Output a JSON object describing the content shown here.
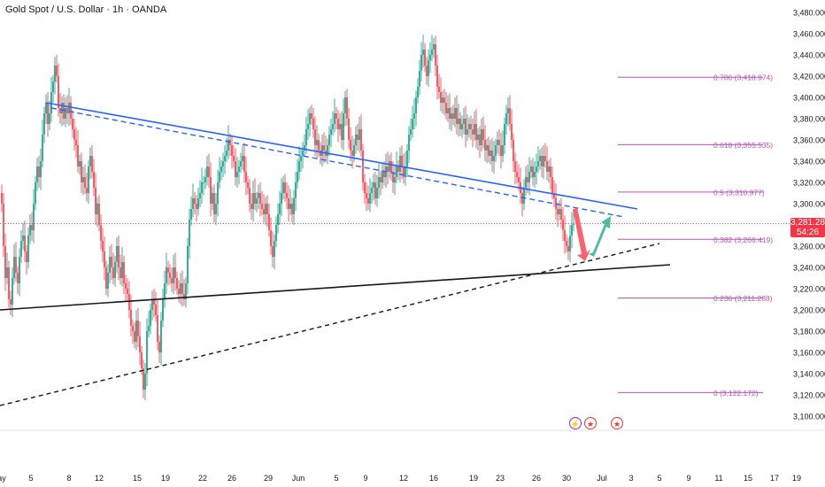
{
  "header": {
    "symbol_title": "Gold Spot / U.S. Dollar · 1h · OANDA"
  },
  "price_tag": {
    "price": "3,281.285",
    "countdown": "54:26",
    "color": "#f23645"
  },
  "events": [
    {
      "icon": "lightning-icon",
      "color": "#9c27b0"
    },
    {
      "icon": "us-flag-icon",
      "color": "#e53935"
    },
    {
      "icon": "us-flag-icon",
      "color": "#e53935"
    }
  ],
  "chart_data": {
    "type": "candlestick",
    "y_range": [
      3090,
      3490
    ],
    "y_ticks": [
      "3,100.000",
      "3,120.000",
      "3,140.000",
      "3,160.000",
      "3,180.000",
      "3,200.000",
      "3,220.000",
      "3,240.000",
      "3,260.000",
      "3,280.000",
      "3,300.000",
      "3,320.000",
      "3,340.000",
      "3,360.000",
      "3,380.000",
      "3,400.000",
      "3,420.000",
      "3,440.000",
      "3,460.000",
      "3,480.000"
    ],
    "x_ticks": [
      "ay",
      "5",
      "8",
      "12",
      "15",
      "19",
      "22",
      "26",
      "29",
      "Jun",
      "5",
      "9",
      "12",
      "16",
      "19",
      "23",
      "26",
      "30",
      "Jul",
      "3",
      "5",
      "9",
      "11",
      "15",
      "17",
      "19"
    ],
    "current_price": 3281.285,
    "fibonacci": [
      {
        "label": "0.786 (3,418.974)",
        "value": 3418.974
      },
      {
        "label": "0.618 (3,355.535)",
        "value": 3355.535
      },
      {
        "label": "0.5 (3,310.977)",
        "value": 3310.977
      },
      {
        "label": "0.382 (3,266.419)",
        "value": 3266.419
      },
      {
        "label": "0.236 (3,211.288)",
        "value": 3211.288
      },
      {
        "label": "0 (3,122.172)",
        "value": 3122.172
      }
    ],
    "price_path": [
      [
        0,
        3310
      ],
      [
        2,
        3300
      ],
      [
        4,
        3260
      ],
      [
        6,
        3230
      ],
      [
        8,
        3240
      ],
      [
        10,
        3210
      ],
      [
        12,
        3205
      ],
      [
        14,
        3230
      ],
      [
        16,
        3250
      ],
      [
        18,
        3235
      ],
      [
        20,
        3225
      ],
      [
        22,
        3250
      ],
      [
        24,
        3265
      ],
      [
        26,
        3270
      ],
      [
        28,
        3255
      ],
      [
        30,
        3245
      ],
      [
        32,
        3270
      ],
      [
        34,
        3280
      ],
      [
        36,
        3275
      ],
      [
        38,
        3300
      ],
      [
        40,
        3320
      ],
      [
        42,
        3335
      ],
      [
        44,
        3325
      ],
      [
        46,
        3340
      ],
      [
        48,
        3365
      ],
      [
        50,
        3385
      ],
      [
        52,
        3395
      ],
      [
        54,
        3375
      ],
      [
        56,
        3385
      ],
      [
        58,
        3405
      ],
      [
        60,
        3415
      ],
      [
        62,
        3430
      ],
      [
        64,
        3420
      ],
      [
        66,
        3390
      ],
      [
        68,
        3385
      ],
      [
        70,
        3395
      ],
      [
        72,
        3380
      ],
      [
        74,
        3390
      ],
      [
        76,
        3385
      ],
      [
        78,
        3395
      ],
      [
        80,
        3380
      ],
      [
        82,
        3370
      ],
      [
        84,
        3360
      ],
      [
        86,
        3355
      ],
      [
        88,
        3335
      ],
      [
        90,
        3340
      ],
      [
        92,
        3320
      ],
      [
        94,
        3325
      ],
      [
        96,
        3315
      ],
      [
        98,
        3310
      ],
      [
        100,
        3335
      ],
      [
        102,
        3345
      ],
      [
        104,
        3330
      ],
      [
        106,
        3315
      ],
      [
        108,
        3290
      ],
      [
        110,
        3300
      ],
      [
        112,
        3280
      ],
      [
        114,
        3265
      ],
      [
        116,
        3255
      ],
      [
        118,
        3240
      ],
      [
        120,
        3220
      ],
      [
        122,
        3235
      ],
      [
        124,
        3250
      ],
      [
        126,
        3240
      ],
      [
        128,
        3230
      ],
      [
        130,
        3245
      ],
      [
        132,
        3260
      ],
      [
        134,
        3240
      ],
      [
        136,
        3230
      ],
      [
        138,
        3245
      ],
      [
        140,
        3225
      ],
      [
        142,
        3220
      ],
      [
        144,
        3215
      ],
      [
        146,
        3200
      ],
      [
        148,
        3185
      ],
      [
        150,
        3180
      ],
      [
        152,
        3170
      ],
      [
        154,
        3190
      ],
      [
        156,
        3175
      ],
      [
        158,
        3160
      ],
      [
        160,
        3145
      ],
      [
        162,
        3125
      ],
      [
        164,
        3140
      ],
      [
        166,
        3180
      ],
      [
        168,
        3185
      ],
      [
        170,
        3200
      ],
      [
        172,
        3210
      ],
      [
        174,
        3205
      ],
      [
        176,
        3195
      ],
      [
        178,
        3170
      ],
      [
        180,
        3160
      ],
      [
        182,
        3190
      ],
      [
        184,
        3210
      ],
      [
        186,
        3225
      ],
      [
        188,
        3240
      ],
      [
        190,
        3235
      ],
      [
        192,
        3230
      ],
      [
        194,
        3225
      ],
      [
        196,
        3240
      ],
      [
        198,
        3230
      ],
      [
        200,
        3220
      ],
      [
        202,
        3215
      ],
      [
        204,
        3225
      ],
      [
        206,
        3215
      ],
      [
        208,
        3210
      ],
      [
        210,
        3225
      ],
      [
        212,
        3260
      ],
      [
        214,
        3285
      ],
      [
        216,
        3295
      ],
      [
        218,
        3305
      ],
      [
        220,
        3300
      ],
      [
        222,
        3295
      ],
      [
        224,
        3305
      ],
      [
        226,
        3310
      ],
      [
        228,
        3320
      ],
      [
        230,
        3320
      ],
      [
        232,
        3325
      ],
      [
        234,
        3335
      ],
      [
        236,
        3325
      ],
      [
        238,
        3300
      ],
      [
        240,
        3310
      ],
      [
        242,
        3290
      ],
      [
        244,
        3300
      ],
      [
        246,
        3320
      ],
      [
        248,
        3330
      ],
      [
        250,
        3335
      ],
      [
        252,
        3340
      ],
      [
        254,
        3345
      ],
      [
        256,
        3350
      ],
      [
        258,
        3360
      ],
      [
        260,
        3355
      ],
      [
        262,
        3345
      ],
      [
        264,
        3340
      ],
      [
        266,
        3325
      ],
      [
        268,
        3330
      ],
      [
        270,
        3335
      ],
      [
        272,
        3340
      ],
      [
        274,
        3345
      ],
      [
        276,
        3330
      ],
      [
        278,
        3320
      ],
      [
        280,
        3315
      ],
      [
        282,
        3300
      ],
      [
        284,
        3295
      ],
      [
        286,
        3310
      ],
      [
        288,
        3300
      ],
      [
        290,
        3305
      ],
      [
        292,
        3310
      ],
      [
        294,
        3300
      ],
      [
        296,
        3295
      ],
      [
        298,
        3290
      ],
      [
        300,
        3300
      ],
      [
        302,
        3290
      ],
      [
        304,
        3275
      ],
      [
        306,
        3260
      ],
      [
        308,
        3250
      ],
      [
        310,
        3265
      ],
      [
        312,
        3280
      ],
      [
        314,
        3290
      ],
      [
        316,
        3300
      ],
      [
        318,
        3310
      ],
      [
        320,
        3320
      ],
      [
        322,
        3310
      ],
      [
        324,
        3305
      ],
      [
        326,
        3295
      ],
      [
        328,
        3300
      ],
      [
        330,
        3290
      ],
      [
        332,
        3305
      ],
      [
        334,
        3320
      ],
      [
        336,
        3330
      ],
      [
        338,
        3340
      ],
      [
        340,
        3345
      ],
      [
        342,
        3350
      ],
      [
        344,
        3355
      ],
      [
        346,
        3370
      ],
      [
        348,
        3375
      ],
      [
        350,
        3385
      ],
      [
        352,
        3380
      ],
      [
        354,
        3370
      ],
      [
        356,
        3355
      ],
      [
        358,
        3360
      ],
      [
        360,
        3350
      ],
      [
        362,
        3345
      ],
      [
        364,
        3355
      ],
      [
        366,
        3350
      ],
      [
        368,
        3345
      ],
      [
        370,
        3355
      ],
      [
        372,
        3365
      ],
      [
        374,
        3370
      ],
      [
        376,
        3375
      ],
      [
        378,
        3385
      ],
      [
        380,
        3380
      ],
      [
        382,
        3370
      ],
      [
        384,
        3375
      ],
      [
        386,
        3360
      ],
      [
        388,
        3385
      ],
      [
        390,
        3400
      ],
      [
        392,
        3380
      ],
      [
        394,
        3360
      ],
      [
        396,
        3350
      ],
      [
        398,
        3345
      ],
      [
        400,
        3355
      ],
      [
        402,
        3365
      ],
      [
        404,
        3360
      ],
      [
        406,
        3370
      ],
      [
        408,
        3350
      ],
      [
        410,
        3320
      ],
      [
        412,
        3310
      ],
      [
        414,
        3305
      ],
      [
        416,
        3300
      ],
      [
        418,
        3310
      ],
      [
        420,
        3315
      ],
      [
        422,
        3320
      ],
      [
        424,
        3305
      ],
      [
        426,
        3315
      ],
      [
        428,
        3325
      ],
      [
        430,
        3320
      ],
      [
        432,
        3330
      ],
      [
        434,
        3325
      ],
      [
        436,
        3335
      ],
      [
        438,
        3330
      ],
      [
        440,
        3340
      ],
      [
        442,
        3330
      ],
      [
        444,
        3320
      ],
      [
        446,
        3325
      ],
      [
        448,
        3335
      ],
      [
        450,
        3330
      ],
      [
        452,
        3345
      ],
      [
        454,
        3335
      ],
      [
        456,
        3325
      ],
      [
        458,
        3335
      ],
      [
        460,
        3350
      ],
      [
        462,
        3365
      ],
      [
        464,
        3370
      ],
      [
        466,
        3380
      ],
      [
        468,
        3385
      ],
      [
        470,
        3400
      ],
      [
        472,
        3410
      ],
      [
        474,
        3425
      ],
      [
        476,
        3440
      ],
      [
        478,
        3445
      ],
      [
        480,
        3430
      ],
      [
        482,
        3420
      ],
      [
        484,
        3435
      ],
      [
        486,
        3440
      ],
      [
        488,
        3445
      ],
      [
        490,
        3450
      ],
      [
        492,
        3430
      ],
      [
        494,
        3410
      ],
      [
        496,
        3405
      ],
      [
        498,
        3395
      ],
      [
        500,
        3400
      ],
      [
        502,
        3395
      ],
      [
        504,
        3385
      ],
      [
        506,
        3390
      ],
      [
        508,
        3380
      ],
      [
        510,
        3385
      ],
      [
        512,
        3380
      ],
      [
        514,
        3390
      ],
      [
        516,
        3375
      ],
      [
        518,
        3380
      ],
      [
        520,
        3370
      ],
      [
        522,
        3375
      ],
      [
        524,
        3380
      ],
      [
        526,
        3365
      ],
      [
        528,
        3370
      ],
      [
        530,
        3375
      ],
      [
        532,
        3370
      ],
      [
        534,
        3365
      ],
      [
        536,
        3375
      ],
      [
        538,
        3360
      ],
      [
        540,
        3365
      ],
      [
        542,
        3355
      ],
      [
        544,
        3370
      ],
      [
        546,
        3360
      ],
      [
        548,
        3350
      ],
      [
        550,
        3355
      ],
      [
        552,
        3345
      ],
      [
        554,
        3350
      ],
      [
        556,
        3340
      ],
      [
        558,
        3345
      ],
      [
        560,
        3355
      ],
      [
        562,
        3360
      ],
      [
        564,
        3355
      ],
      [
        566,
        3345
      ],
      [
        568,
        3355
      ],
      [
        570,
        3375
      ],
      [
        572,
        3385
      ],
      [
        574,
        3390
      ],
      [
        576,
        3375
      ],
      [
        578,
        3360
      ],
      [
        580,
        3340
      ],
      [
        582,
        3330
      ],
      [
        584,
        3325
      ],
      [
        586,
        3320
      ],
      [
        588,
        3310
      ],
      [
        590,
        3300
      ],
      [
        592,
        3315
      ],
      [
        594,
        3325
      ],
      [
        596,
        3320
      ],
      [
        598,
        3330
      ],
      [
        600,
        3335
      ],
      [
        602,
        3325
      ],
      [
        604,
        3330
      ],
      [
        606,
        3335
      ],
      [
        608,
        3340
      ],
      [
        610,
        3345
      ],
      [
        612,
        3335
      ],
      [
        614,
        3345
      ],
      [
        616,
        3340
      ],
      [
        618,
        3330
      ],
      [
        620,
        3335
      ],
      [
        622,
        3325
      ],
      [
        624,
        3310
      ],
      [
        626,
        3305
      ],
      [
        628,
        3295
      ],
      [
        630,
        3290
      ],
      [
        632,
        3295
      ],
      [
        634,
        3285
      ],
      [
        636,
        3275
      ],
      [
        638,
        3265
      ],
      [
        640,
        3260
      ],
      [
        642,
        3255
      ],
      [
        644,
        3270
      ],
      [
        646,
        3280
      ],
      [
        648,
        3281
      ]
    ],
    "projection_arrows": [
      {
        "direction": "down",
        "color": "#f7525f"
      },
      {
        "direction": "up",
        "color": "#3cb497"
      }
    ]
  }
}
